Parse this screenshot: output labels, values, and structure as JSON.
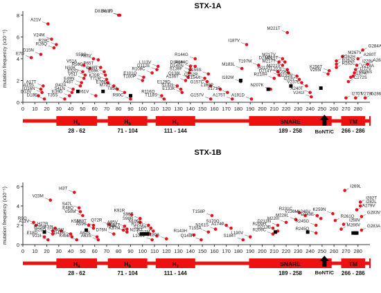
{
  "chart_data": [
    {
      "type": "scatter",
      "title": "STX-1A",
      "ylabel": "mutation frequency (x10⁻⁵)",
      "ylim": [
        0,
        8
      ],
      "xlim": [
        0,
        290
      ],
      "yticks": [
        0,
        2,
        4,
        6,
        8
      ],
      "xticks": [
        0,
        10,
        20,
        30,
        40,
        50,
        60,
        70,
        80,
        90,
        100,
        110,
        120,
        130,
        140,
        150,
        160,
        170,
        180,
        190,
        200,
        210,
        220,
        230,
        240,
        250,
        260,
        270,
        280
      ],
      "domains": [
        {
          "name": "H",
          "sub": "a",
          "start": 28,
          "end": 62,
          "range": "28 - 62"
        },
        {
          "name": "H",
          "sub": "b",
          "start": 71,
          "end": 104,
          "range": "71 - 104"
        },
        {
          "name": "H",
          "sub": "c",
          "start": 111,
          "end": 144,
          "range": "111 - 144"
        },
        {
          "name": "SNARE",
          "sub": "",
          "start": 189,
          "end": 258,
          "range": "189 - 258"
        },
        {
          "name": "TM",
          "sub": "",
          "start": 266,
          "end": 286,
          "range": "266 - 286"
        }
      ],
      "marker_label": "BoNT/C",
      "marker_x": 252,
      "points": [
        {
          "x": 18,
          "y": 0.3,
          "label": "D18E"
        },
        {
          "x": 13,
          "y": 0.6,
          "label": "D13V"
        },
        {
          "x": 16,
          "y": 0.9,
          "label": "D16N"
        },
        {
          "x": 15,
          "y": 1.2,
          "label": "A15S"
        },
        {
          "x": 17,
          "y": 1.5,
          "label": "A17T"
        },
        {
          "x": 7,
          "y": 4.1,
          "label": "E7D"
        },
        {
          "x": 15,
          "y": 4.4,
          "label": "D15N"
        },
        {
          "x": 26,
          "y": 5.0,
          "label": "R26Q"
        },
        {
          "x": 28,
          "y": 5.3,
          "label": "R28C"
        },
        {
          "x": 24,
          "y": 5.8,
          "label": "V24M"
        },
        {
          "x": 21,
          "y": 7.2,
          "label": "A21V"
        },
        {
          "x": 35,
          "y": 0.3,
          "label": "T35S"
        },
        {
          "x": 39,
          "y": 0.6,
          "label": "E39D"
        },
        {
          "x": 41,
          "y": 0.9,
          "label": "S41N"
        },
        {
          "x": 42,
          "y": 1.2,
          "label": "G42A"
        },
        {
          "x": 48,
          "y": 1.5,
          "label": "A48T"
        },
        {
          "x": 49,
          "y": 1.8,
          "label": "E49N"
        },
        {
          "x": 51,
          "y": 2.2,
          "label": "V51I"
        },
        {
          "x": 52,
          "y": 2.5,
          "label": "E52D"
        },
        {
          "x": 50,
          "y": 2.8,
          "label": "N50K"
        },
        {
          "x": 56,
          "y": 3.1,
          "label": "R56Q"
        },
        {
          "x": 51,
          "y": 3.4,
          "label": "V51A"
        },
        {
          "x": 63,
          "y": 3.9,
          "label": "A63V"
        },
        {
          "x": 61,
          "y": 0.6,
          "label": "I61V"
        },
        {
          "x": 59,
          "y": 4.0,
          "label": "S59G"
        },
        {
          "x": 65,
          "y": 3.2,
          "label": "P65T"
        },
        {
          "x": 68,
          "y": 2.8,
          "label": "D68N"
        },
        {
          "x": 69,
          "y": 2.5,
          "label": "E69K"
        },
        {
          "x": 70,
          "y": 2.1,
          "label": "K70R"
        },
        {
          "x": 71,
          "y": 1.8,
          "label": "T71M"
        },
        {
          "x": 76,
          "y": 1.5,
          "label": "E76G"
        },
        {
          "x": 79,
          "y": 1.2,
          "label": "M79T"
        },
        {
          "x": 85,
          "y": 0.9,
          "label": "T85A"
        },
        {
          "x": 90,
          "y": 0.3,
          "label": "R90C"
        },
        {
          "x": 80,
          "y": 8.0,
          "label": "S80F"
        },
        {
          "x": 81,
          "y": 8.0,
          "label": "D81N, 19"
        },
        {
          "x": 113,
          "y": 3.3,
          "label": "L113V"
        },
        {
          "x": 112,
          "y": 3.0,
          "label": "D112E"
        },
        {
          "x": 108,
          "y": 2.7,
          "label": "R108C"
        },
        {
          "x": 101,
          "y": 2.3,
          "label": "E101Q"
        },
        {
          "x": 100,
          "y": 2.0,
          "label": "T100P"
        },
        {
          "x": 129,
          "y": 1.5,
          "label": "E129D"
        },
        {
          "x": 132,
          "y": 1.2,
          "label": "S132L"
        },
        {
          "x": 133,
          "y": 0.9,
          "label": "E133K"
        },
        {
          "x": 116,
          "y": 0.6,
          "label": "R116Q"
        },
        {
          "x": 118,
          "y": 0.3,
          "label": "T118S"
        },
        {
          "x": 140,
          "y": 3.3,
          "label": "D140H"
        },
        {
          "x": 140,
          "y": 3.0,
          "label": "D140N"
        },
        {
          "x": 139,
          "y": 2.7,
          "label": "S139F"
        },
        {
          "x": 138,
          "y": 2.3,
          "label": "Q138L"
        },
        {
          "x": 136,
          "y": 2.0,
          "label": "A136T"
        },
        {
          "x": 144,
          "y": 4.0,
          "label": "R144G"
        },
        {
          "x": 144,
          "y": 3.3,
          "label": "R144C"
        },
        {
          "x": 155,
          "y": 2.6,
          "label": "C155S"
        },
        {
          "x": 152,
          "y": 2.2,
          "label": "Q152R"
        },
        {
          "x": 154,
          "y": 1.9,
          "label": "E154A"
        },
        {
          "x": 157,
          "y": 1.5,
          "label": "G157C"
        },
        {
          "x": 165,
          "y": 1.2,
          "label": "L165P"
        },
        {
          "x": 171,
          "y": 0.9,
          "label": "S171R"
        },
        {
          "x": 157,
          "y": 0.3,
          "label": "G157V"
        },
        {
          "x": 175,
          "y": 0.3,
          "label": "A175T"
        },
        {
          "x": 187,
          "y": 5.3,
          "label": "I187V"
        },
        {
          "x": 191,
          "y": 0.3,
          "label": "A191D"
        },
        {
          "x": 217,
          "y": 4.0,
          "label": "M217V"
        },
        {
          "x": 214,
          "y": 3.7,
          "label": "D214N"
        },
        {
          "x": 197,
          "y": 3.4,
          "label": "T197M"
        },
        {
          "x": 183,
          "y": 3.1,
          "label": "M183L"
        },
        {
          "x": 213,
          "y": 2.8,
          "label": "H213Y"
        },
        {
          "x": 214,
          "y": 2.5,
          "label": "D214Y"
        },
        {
          "x": 210,
          "y": 2.2,
          "label": "R210H"
        },
        {
          "x": 182,
          "y": 1.9,
          "label": "I182M"
        },
        {
          "x": 207,
          "y": 1.2,
          "label": "N207K"
        },
        {
          "x": 221,
          "y": 6.4,
          "label": "M221T"
        },
        {
          "x": 219,
          "y": 3.7,
          "label": "M219T"
        },
        {
          "x": 217,
          "y": 3.4,
          "label": "M217T"
        },
        {
          "x": 221,
          "y": 3.0,
          "label": "M221V"
        },
        {
          "x": 222,
          "y": 2.7,
          "label": "L222I"
        },
        {
          "x": 229,
          "y": 2.4,
          "label": "V229L"
        },
        {
          "x": 231,
          "y": 2.1,
          "label": "D231N"
        },
        {
          "x": 233,
          "y": 1.8,
          "label": "I233V"
        },
        {
          "x": 237,
          "y": 1.5,
          "label": "V237L"
        },
        {
          "x": 240,
          "y": 0.9,
          "label": "A240T"
        },
        {
          "x": 241,
          "y": 0.5,
          "label": "V241I"
        },
        {
          "x": 267,
          "y": 4.2,
          "label": "M267V"
        },
        {
          "x": 262,
          "y": 3.8,
          "label": "R262H"
        },
        {
          "x": 262,
          "y": 3.5,
          "label": "R262P"
        },
        {
          "x": 262,
          "y": 3.2,
          "label": "R262C"
        },
        {
          "x": 256,
          "y": 2.9,
          "label": "K256T"
        },
        {
          "x": 255,
          "y": 2.6,
          "label": "V255I"
        },
        {
          "x": 274,
          "y": 2.3,
          "label": "L274I"
        },
        {
          "x": 272,
          "y": 1.9,
          "label": "C272S"
        },
        {
          "x": 270,
          "y": 0.4,
          "label": "I270T"
        },
        {
          "x": 284,
          "y": 4.8,
          "label": "G284A"
        },
        {
          "x": 280,
          "y": 4.0,
          "label": "A280T"
        },
        {
          "x": 279,
          "y": 3.4,
          "label": "I279V"
        },
        {
          "x": 278,
          "y": 3.0,
          "label": "V278A"
        },
        {
          "x": 277,
          "y": 2.7,
          "label": "I277V"
        },
        {
          "x": 276,
          "y": 2.4,
          "label": "G276S"
        },
        {
          "x": 278,
          "y": 0.4,
          "label": "V278I"
        },
        {
          "x": 288,
          "y": 3.5,
          "label": "A288T"
        },
        {
          "x": 286,
          "y": 0.4,
          "label": "G286T"
        }
      ],
      "squares": [
        {
          "x": 46,
          "y": 1.0
        },
        {
          "x": 67,
          "y": 1.0
        },
        {
          "x": 90,
          "y": 0.6
        },
        {
          "x": 182,
          "y": 2.0
        },
        {
          "x": 205,
          "y": 1.2
        },
        {
          "x": 224,
          "y": 1.5
        },
        {
          "x": 249,
          "y": 1.3
        }
      ]
    },
    {
      "type": "scatter",
      "title": "STX-1B",
      "ylabel": "mutation frequency (x10⁻⁵)",
      "ylim": [
        0,
        6
      ],
      "xlim": [
        0,
        290
      ],
      "yticks": [
        0,
        2,
        4,
        6
      ],
      "xticks": [
        0,
        10,
        20,
        30,
        40,
        50,
        60,
        70,
        80,
        90,
        100,
        110,
        120,
        130,
        140,
        150,
        160,
        170,
        180,
        190,
        200,
        210,
        220,
        230,
        240,
        250,
        260,
        270,
        280
      ],
      "domains": [
        {
          "name": "H",
          "sub": "a",
          "start": 28,
          "end": 62,
          "range": "28 - 62"
        },
        {
          "name": "H",
          "sub": "b",
          "start": 71,
          "end": 104,
          "range": "71 - 104"
        },
        {
          "name": "H",
          "sub": "c",
          "start": 111,
          "end": 144,
          "range": "111 - 144"
        },
        {
          "name": "SNARE",
          "sub": "",
          "start": 189,
          "end": 258,
          "range": "189 - 258"
        },
        {
          "name": "TM",
          "sub": "",
          "start": 266,
          "end": 286,
          "range": "266 - 286"
        }
      ],
      "marker_label": "BoNT/C",
      "marker_x": 252,
      "points": [
        {
          "x": 9,
          "y": 2.3,
          "label": "R9Q"
        },
        {
          "x": 11,
          "y": 2.0,
          "label": "A11V"
        },
        {
          "x": 25,
          "y": 1.4,
          "label": "R25W"
        },
        {
          "x": 25,
          "y": 1.1,
          "label": "R25Q"
        },
        {
          "x": 21,
          "y": 0.5,
          "label": "V21I"
        },
        {
          "x": 18,
          "y": 0.8,
          "label": "E18D"
        },
        {
          "x": 23,
          "y": 4.6,
          "label": "V23M"
        },
        {
          "x": 27,
          "y": 1.7,
          "label": "H27R"
        },
        {
          "x": 32,
          "y": 1.4,
          "label": "F32L"
        },
        {
          "x": 40,
          "y": 1.1,
          "label": "R40W"
        },
        {
          "x": 41,
          "y": 0.8,
          "label": "G41R"
        },
        {
          "x": 45,
          "y": 0.5,
          "label": "K45E"
        },
        {
          "x": 43,
          "y": 5.4,
          "label": "I43T"
        },
        {
          "x": 47,
          "y": 3.8,
          "label": "S47L"
        },
        {
          "x": 48,
          "y": 3.4,
          "label": "E48Q"
        },
        {
          "x": 50,
          "y": 3.0,
          "label": "V50M"
        },
        {
          "x": 55,
          "y": 2.0,
          "label": "K55E"
        },
        {
          "x": 59,
          "y": 2.0,
          "label": "A59T"
        },
        {
          "x": 59,
          "y": 1.7,
          "label": "A59S"
        },
        {
          "x": 76,
          "y": 1.1,
          "label": "D76N"
        },
        {
          "x": 62,
          "y": 0.8,
          "label": "A62S"
        },
        {
          "x": 63,
          "y": 0.5,
          "label": "A63S"
        },
        {
          "x": 72,
          "y": 2.1,
          "label": "Q72R"
        },
        {
          "x": 84,
          "y": 1.5,
          "label": "T84K"
        },
        {
          "x": 91,
          "y": 3.1,
          "label": "K91R"
        },
        {
          "x": 98,
          "y": 2.7,
          "label": "S98T"
        },
        {
          "x": 98,
          "y": 2.3,
          "label": "S98R"
        },
        {
          "x": 85,
          "y": 1.9,
          "label": "A85V"
        },
        {
          "x": 87,
          "y": 1.6,
          "label": "K87T"
        },
        {
          "x": 87,
          "y": 1.3,
          "label": "K87M"
        },
        {
          "x": 105,
          "y": 2.0,
          "label": "N105S"
        },
        {
          "x": 107,
          "y": 1.7,
          "label": "R107L"
        },
        {
          "x": 109,
          "y": 1.4,
          "label": "S109A"
        },
        {
          "x": 106,
          "y": 1.1,
          "label": "N106T"
        },
        {
          "x": 108,
          "y": 0.5,
          "label": "L108V"
        },
        {
          "x": 112,
          "y": 0.9,
          "label": "L112M"
        },
        {
          "x": 120,
          "y": 0.6,
          "label": "S120A"
        },
        {
          "x": 143,
          "y": 1.0,
          "label": "R143H"
        },
        {
          "x": 158,
          "y": 3.0,
          "label": "T158P"
        },
        {
          "x": 161,
          "y": 1.6,
          "label": "N161S"
        },
        {
          "x": 155,
          "y": 1.3,
          "label": "T155A"
        },
        {
          "x": 149,
          "y": 0.5,
          "label": "Q149R"
        },
        {
          "x": 170,
          "y": 2.0,
          "label": "S170G"
        },
        {
          "x": 174,
          "y": 1.7,
          "label": "A174P"
        },
        {
          "x": 184,
          "y": 0.5,
          "label": "S184T"
        },
        {
          "x": 190,
          "y": 0.8,
          "label": "L190V"
        },
        {
          "x": 231,
          "y": 3.3,
          "label": "R231C"
        },
        {
          "x": 236,
          "y": 3.0,
          "label": "V236M"
        },
        {
          "x": 228,
          "y": 2.6,
          "label": "M228L"
        },
        {
          "x": 220,
          "y": 2.3,
          "label": "M220I"
        },
        {
          "x": 213,
          "y": 2.0,
          "label": "D213N"
        },
        {
          "x": 209,
          "y": 1.7,
          "label": "R209H"
        },
        {
          "x": 213,
          "y": 1.4,
          "label": "D213E"
        },
        {
          "x": 209,
          "y": 1.1,
          "label": "R209C"
        },
        {
          "x": 245,
          "y": 2.0,
          "label": "R245G"
        },
        {
          "x": 245,
          "y": 1.2,
          "label": "R245Q"
        },
        {
          "x": 246,
          "y": 3.0,
          "label": "A246V"
        },
        {
          "x": 249,
          "y": 2.7,
          "label": "D249E"
        },
        {
          "x": 269,
          "y": 5.6,
          "label": "I269L"
        },
        {
          "x": 282,
          "y": 4.4,
          "label": "I282T"
        },
        {
          "x": 282,
          "y": 4.0,
          "label": "I282L"
        },
        {
          "x": 279,
          "y": 3.6,
          "label": "A279V"
        },
        {
          "x": 259,
          "y": 3.2,
          "label": "K259N"
        },
        {
          "x": 261,
          "y": 2.5,
          "label": "R261Q"
        },
        {
          "x": 268,
          "y": 2.1,
          "label": "I268V"
        },
        {
          "x": 266,
          "y": 1.6,
          "label": "M266V"
        },
        {
          "x": 283,
          "y": 2.9,
          "label": "G283V"
        },
        {
          "x": 283,
          "y": 1.5,
          "label": "G283A"
        }
      ],
      "squares": [
        {
          "x": 18,
          "y": 1.3
        },
        {
          "x": 53,
          "y": 1.5
        },
        {
          "x": 99,
          "y": 1.1
        },
        {
          "x": 101,
          "y": 1.1
        },
        {
          "x": 102,
          "y": 1.1
        },
        {
          "x": 104,
          "y": 1.1
        },
        {
          "x": 211,
          "y": 1.3
        },
        {
          "x": 238,
          "y": 1.3
        },
        {
          "x": 276,
          "y": 1.2
        },
        {
          "x": 278,
          "y": 1.2
        },
        {
          "x": 279,
          "y": 1.2
        }
      ]
    }
  ]
}
